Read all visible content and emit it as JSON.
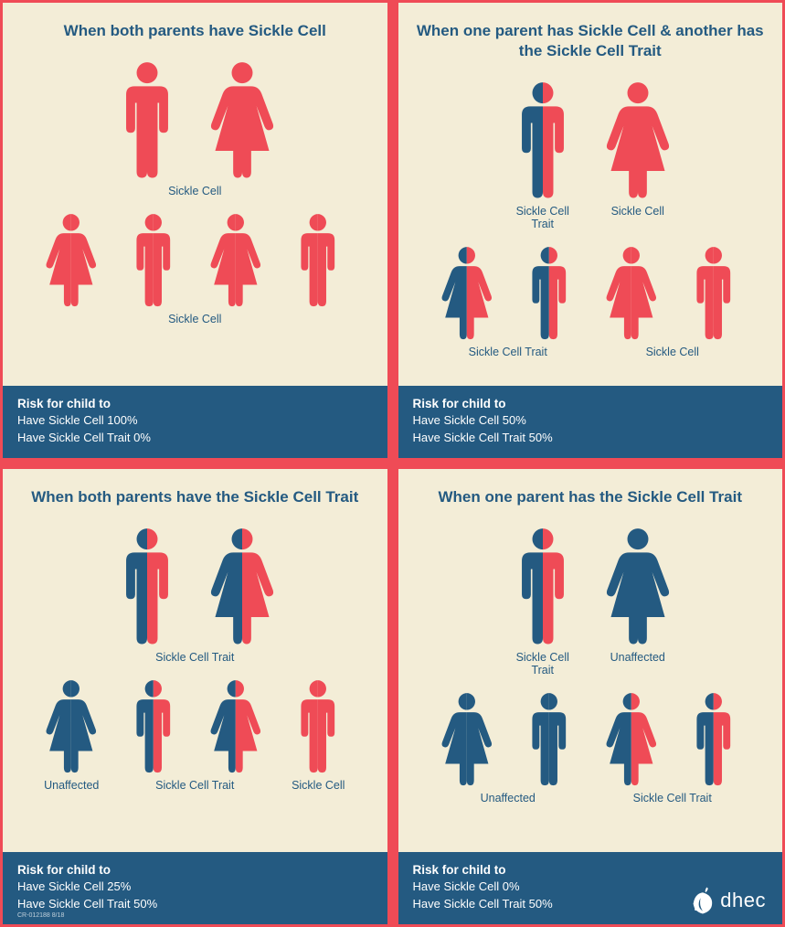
{
  "colors": {
    "divider": "#ef4b56",
    "panel_bg": "#f3edd7",
    "risk_bg": "#245a81",
    "title_color": "#245a81",
    "risk_text": "#ffffff",
    "sickle": "#ef4b56",
    "unaffected": "#245a81"
  },
  "panels": [
    {
      "title": "When both parents have Sickle Cell",
      "parents": [
        {
          "type": "male",
          "left": "#ef4b56",
          "right": "#ef4b56"
        },
        {
          "type": "female",
          "left": "#ef4b56",
          "right": "#ef4b56"
        }
      ],
      "parents_label_mode": "single",
      "parents_labels": [
        "Sickle Cell"
      ],
      "children": [
        {
          "type": "female",
          "left": "#ef4b56",
          "right": "#ef4b56"
        },
        {
          "type": "male",
          "left": "#ef4b56",
          "right": "#ef4b56"
        },
        {
          "type": "female",
          "left": "#ef4b56",
          "right": "#ef4b56"
        },
        {
          "type": "male",
          "left": "#ef4b56",
          "right": "#ef4b56"
        }
      ],
      "children_labels": [
        {
          "text": "Sickle Cell",
          "span": 4
        }
      ],
      "risk_title": "Risk for child to",
      "risk_lines": [
        "Have Sickle Cell 100%",
        "Have Sickle Cell Trait 0%"
      ]
    },
    {
      "title": "When one parent has Sickle Cell & another has the Sickle Cell Trait",
      "parents": [
        {
          "type": "male",
          "left": "#245a81",
          "right": "#ef4b56"
        },
        {
          "type": "female",
          "left": "#ef4b56",
          "right": "#ef4b56"
        }
      ],
      "parents_label_mode": "each",
      "parents_labels": [
        "Sickle Cell Trait",
        "Sickle Cell"
      ],
      "children": [
        {
          "type": "female",
          "left": "#245a81",
          "right": "#ef4b56"
        },
        {
          "type": "male",
          "left": "#245a81",
          "right": "#ef4b56"
        },
        {
          "type": "female",
          "left": "#ef4b56",
          "right": "#ef4b56"
        },
        {
          "type": "male",
          "left": "#ef4b56",
          "right": "#ef4b56"
        }
      ],
      "children_labels": [
        {
          "text": "Sickle Cell Trait",
          "span": 2
        },
        {
          "text": "Sickle Cell",
          "span": 2
        }
      ],
      "risk_title": "Risk for child to",
      "risk_lines": [
        "Have Sickle Cell 50%",
        "Have Sickle Cell Trait 50%"
      ]
    },
    {
      "title": "When both parents have the Sickle Cell Trait",
      "parents": [
        {
          "type": "male",
          "left": "#245a81",
          "right": "#ef4b56"
        },
        {
          "type": "female",
          "left": "#245a81",
          "right": "#ef4b56"
        }
      ],
      "parents_label_mode": "single",
      "parents_labels": [
        "Sickle Cell Trait"
      ],
      "children": [
        {
          "type": "female",
          "left": "#245a81",
          "right": "#245a81"
        },
        {
          "type": "male",
          "left": "#245a81",
          "right": "#ef4b56"
        },
        {
          "type": "female",
          "left": "#245a81",
          "right": "#ef4b56"
        },
        {
          "type": "male",
          "left": "#ef4b56",
          "right": "#ef4b56"
        }
      ],
      "children_labels": [
        {
          "text": "Unaffected",
          "span": 1
        },
        {
          "text": "Sickle Cell Trait",
          "span": 2
        },
        {
          "text": "Sickle Cell",
          "span": 1
        }
      ],
      "risk_title": "Risk for child to",
      "risk_lines": [
        "Have Sickle Cell 25%",
        "Have Sickle Cell Trait 50%"
      ],
      "doc_num": "CR-012188 8/18"
    },
    {
      "title": "When one parent has the Sickle Cell Trait",
      "parents": [
        {
          "type": "male",
          "left": "#245a81",
          "right": "#ef4b56"
        },
        {
          "type": "female",
          "left": "#245a81",
          "right": "#245a81"
        }
      ],
      "parents_label_mode": "each",
      "parents_labels": [
        "Sickle Cell Trait",
        "Unaffected"
      ],
      "children": [
        {
          "type": "female",
          "left": "#245a81",
          "right": "#245a81"
        },
        {
          "type": "male",
          "left": "#245a81",
          "right": "#245a81"
        },
        {
          "type": "female",
          "left": "#245a81",
          "right": "#ef4b56"
        },
        {
          "type": "male",
          "left": "#245a81",
          "right": "#ef4b56"
        }
      ],
      "children_labels": [
        {
          "text": "Unaffected",
          "span": 2
        },
        {
          "text": "Sickle Cell Trait",
          "span": 2
        }
      ],
      "risk_title": "Risk for child to",
      "risk_lines": [
        "Have Sickle Cell 0%",
        "Have Sickle Cell Trait 50%"
      ],
      "logo_text": "dhec"
    }
  ],
  "parent_figure_size": {
    "w": 82,
    "h": 135
  },
  "child_figure_size": {
    "w": 80,
    "h": 108
  }
}
